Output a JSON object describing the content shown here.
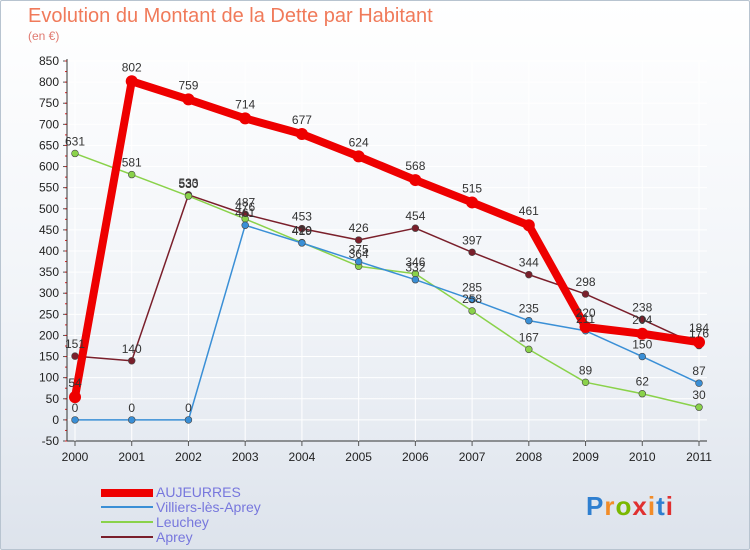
{
  "header": {
    "title": "Evolution du Montant de la Dette par Habitant",
    "subtitle": "(en €)"
  },
  "logo": {
    "letters": [
      "P",
      "r",
      "o",
      "x",
      "i",
      "t",
      "i"
    ],
    "colors": [
      "#2f7fd0",
      "#f28c28",
      "#7ab800",
      "#e03030",
      "#f28c28",
      "#2f7fd0",
      "#e03030"
    ]
  },
  "chart_data": {
    "type": "line",
    "x": [
      "2000",
      "2001",
      "2002",
      "2003",
      "2004",
      "2005",
      "2006",
      "2007",
      "2008",
      "2009",
      "2010",
      "2011"
    ],
    "ylim": [
      -50,
      850
    ],
    "yticks": [
      -50,
      0,
      50,
      100,
      150,
      200,
      250,
      300,
      350,
      400,
      450,
      500,
      550,
      600,
      650,
      700,
      750,
      800,
      850
    ],
    "grid": true,
    "legend_position": "bottom-left",
    "series": [
      {
        "name": "AUJEURRES",
        "color": "#ee0000",
        "values": [
          54,
          802,
          759,
          714,
          677,
          624,
          568,
          515,
          461,
          220,
          204,
          184
        ],
        "labels": [
          "54",
          "802",
          "759",
          "714",
          "677",
          "624",
          "568",
          "515",
          "461",
          "220",
          "204",
          "184"
        ]
      },
      {
        "name": "Villiers-lès-Aprey",
        "color": "#3a8fd6",
        "values": [
          0,
          0,
          0,
          461,
          419,
          375,
          332,
          285,
          235,
          211,
          150,
          87
        ],
        "labels": [
          "0",
          "0",
          "0",
          "461",
          "419",
          "375",
          "332",
          "285",
          "235",
          "211",
          "150",
          "87"
        ]
      },
      {
        "name": "Leuchey",
        "color": "#8ad24a",
        "values": [
          631,
          581,
          530,
          476,
          420,
          364,
          346,
          258,
          167,
          89,
          62,
          30
        ],
        "labels": [
          "631",
          "581",
          "530",
          "476",
          "420",
          "364",
          "346",
          "258",
          "167",
          "89",
          "62",
          "30"
        ]
      },
      {
        "name": "Aprey",
        "color": "#7a1f2b",
        "values": [
          151,
          140,
          533,
          487,
          453,
          426,
          454,
          397,
          344,
          298,
          238,
          176
        ],
        "labels": [
          "151",
          "140",
          "533",
          "487",
          "453",
          "426",
          "454",
          "397",
          "344",
          "298",
          "238",
          "176"
        ]
      }
    ]
  }
}
